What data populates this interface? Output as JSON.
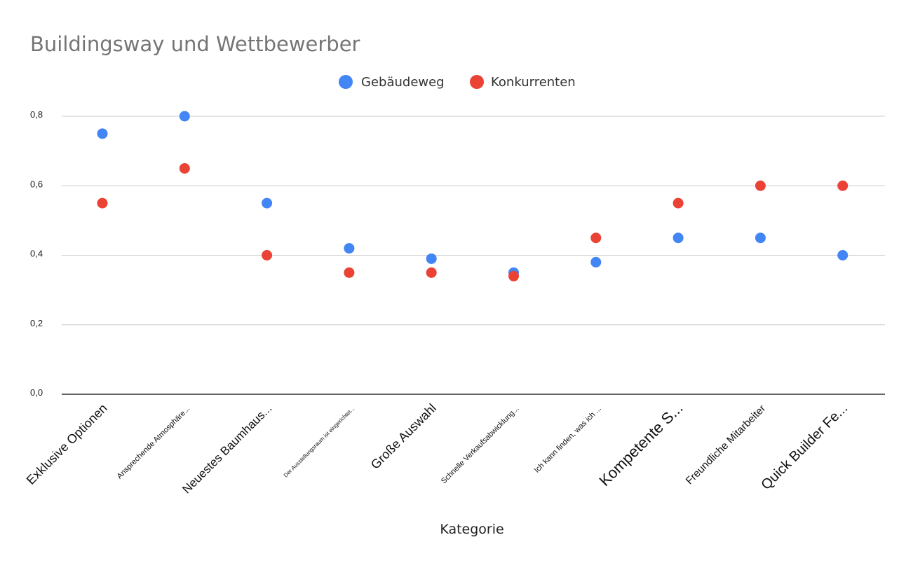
{
  "chart_data": {
    "type": "scatter",
    "title": "Buildingsway und Wettbewerber",
    "xlabel": "Kategorie",
    "ylabel": "",
    "ylim": [
      0,
      0.8
    ],
    "yticks": [
      "0,0",
      "0,2",
      "0,4",
      "0,6",
      "0,8"
    ],
    "grid": true,
    "legend_position": "top-center",
    "categories": [
      "Exklusive Optionen",
      "Ansprechende Atmosphäre...",
      "Neuestes Baumhaus...",
      "Der Ausstellungsraum ist eingerichtet...",
      "Große Auswahl",
      "Schnelle Verkaufsabwicklung...",
      "Ich kann finden, was ich ...",
      "Kompetente S...",
      "Freundliche Mitarbeiter",
      "Quick Builder Fe..."
    ],
    "series": [
      {
        "name": "Gebäudeweg",
        "color": "#4285f4",
        "values": [
          0.75,
          0.8,
          0.55,
          0.42,
          0.39,
          0.35,
          0.38,
          0.45,
          0.45,
          0.4
        ]
      },
      {
        "name": "Konkurrenten",
        "color": "#ea4335",
        "values": [
          0.55,
          0.65,
          0.4,
          0.35,
          0.35,
          0.34,
          0.45,
          0.55,
          0.6,
          0.6
        ]
      }
    ]
  }
}
